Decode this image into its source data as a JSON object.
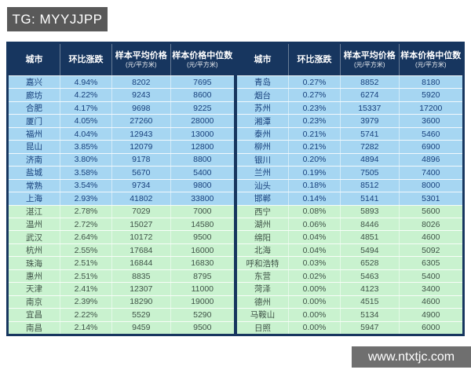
{
  "badge": {
    "label": "TG: MYYJJPP"
  },
  "watermark": {
    "label": "www.ntxtjc.com"
  },
  "colors": {
    "header_bg": "#17365f",
    "border": "#17365f",
    "blue_row_bg": "#a6d6f2",
    "green_row_bg": "#c9f2cf",
    "blue_row_text": "#17407c",
    "green_row_text": "#3f5347",
    "badge_bg": "#595959",
    "watermark_bg": "#6f6f6f"
  },
  "chart_data": {
    "type": "table",
    "headers": {
      "city": "城市",
      "mom_change": "环比涨跌",
      "avg_price": "样本平均价格",
      "median_price": "样本价格中位数",
      "unit": "(元/平方米)"
    },
    "left_rows": [
      {
        "city": "嘉兴",
        "change": "4.94%",
        "avg": "8202",
        "median": "7695",
        "group": "blue"
      },
      {
        "city": "廊坊",
        "change": "4.22%",
        "avg": "9243",
        "median": "8600",
        "group": "blue"
      },
      {
        "city": "合肥",
        "change": "4.17%",
        "avg": "9698",
        "median": "9225",
        "group": "blue"
      },
      {
        "city": "厦门",
        "change": "4.05%",
        "avg": "27260",
        "median": "28000",
        "group": "blue"
      },
      {
        "city": "福州",
        "change": "4.04%",
        "avg": "12943",
        "median": "13000",
        "group": "blue"
      },
      {
        "city": "昆山",
        "change": "3.85%",
        "avg": "12079",
        "median": "12800",
        "group": "blue"
      },
      {
        "city": "济南",
        "change": "3.80%",
        "avg": "9178",
        "median": "8800",
        "group": "blue"
      },
      {
        "city": "盐城",
        "change": "3.58%",
        "avg": "5670",
        "median": "5400",
        "group": "blue"
      },
      {
        "city": "常熟",
        "change": "3.54%",
        "avg": "9734",
        "median": "9800",
        "group": "blue"
      },
      {
        "city": "上海",
        "change": "2.93%",
        "avg": "41802",
        "median": "33800",
        "group": "blue"
      },
      {
        "city": "湛江",
        "change": "2.78%",
        "avg": "7029",
        "median": "7000",
        "group": "green"
      },
      {
        "city": "温州",
        "change": "2.72%",
        "avg": "15027",
        "median": "14580",
        "group": "green"
      },
      {
        "city": "武汉",
        "change": "2.64%",
        "avg": "10172",
        "median": "9500",
        "group": "green"
      },
      {
        "city": "杭州",
        "change": "2.55%",
        "avg": "17684",
        "median": "16000",
        "group": "green"
      },
      {
        "city": "珠海",
        "change": "2.51%",
        "avg": "16844",
        "median": "16830",
        "group": "green"
      },
      {
        "city": "惠州",
        "change": "2.51%",
        "avg": "8835",
        "median": "8795",
        "group": "green"
      },
      {
        "city": "天津",
        "change": "2.41%",
        "avg": "12307",
        "median": "11000",
        "group": "green"
      },
      {
        "city": "南京",
        "change": "2.39%",
        "avg": "18290",
        "median": "19000",
        "group": "green"
      },
      {
        "city": "宜昌",
        "change": "2.22%",
        "avg": "5529",
        "median": "5290",
        "group": "green"
      },
      {
        "city": "南昌",
        "change": "2.14%",
        "avg": "9459",
        "median": "9500",
        "group": "green"
      }
    ],
    "right_rows": [
      {
        "city": "青岛",
        "change": "0.27%",
        "avg": "8852",
        "median": "8180",
        "group": "blue"
      },
      {
        "city": "烟台",
        "change": "0.27%",
        "avg": "6274",
        "median": "5920",
        "group": "blue"
      },
      {
        "city": "苏州",
        "change": "0.23%",
        "avg": "15337",
        "median": "17200",
        "group": "blue"
      },
      {
        "city": "湘潭",
        "change": "0.23%",
        "avg": "3979",
        "median": "3600",
        "group": "blue"
      },
      {
        "city": "泰州",
        "change": "0.21%",
        "avg": "5741",
        "median": "5460",
        "group": "blue"
      },
      {
        "city": "柳州",
        "change": "0.21%",
        "avg": "7282",
        "median": "6900",
        "group": "blue"
      },
      {
        "city": "银川",
        "change": "0.20%",
        "avg": "4894",
        "median": "4896",
        "group": "blue"
      },
      {
        "city": "兰州",
        "change": "0.19%",
        "avg": "7505",
        "median": "7400",
        "group": "blue"
      },
      {
        "city": "汕头",
        "change": "0.18%",
        "avg": "8512",
        "median": "8000",
        "group": "blue"
      },
      {
        "city": "邯郸",
        "change": "0.14%",
        "avg": "5141",
        "median": "5301",
        "group": "blue"
      },
      {
        "city": "西宁",
        "change": "0.08%",
        "avg": "5893",
        "median": "5600",
        "group": "green"
      },
      {
        "city": "湖州",
        "change": "0.06%",
        "avg": "8446",
        "median": "8026",
        "group": "green"
      },
      {
        "city": "绵阳",
        "change": "0.04%",
        "avg": "4851",
        "median": "4600",
        "group": "green"
      },
      {
        "city": "北海",
        "change": "0.04%",
        "avg": "5494",
        "median": "5092",
        "group": "green"
      },
      {
        "city": "呼和浩特",
        "change": "0.03%",
        "avg": "6528",
        "median": "6305",
        "group": "green"
      },
      {
        "city": "东营",
        "change": "0.02%",
        "avg": "5463",
        "median": "5400",
        "group": "green"
      },
      {
        "city": "菏泽",
        "change": "0.00%",
        "avg": "4123",
        "median": "3400",
        "group": "green"
      },
      {
        "city": "德州",
        "change": "0.00%",
        "avg": "4515",
        "median": "4600",
        "group": "green"
      },
      {
        "city": "马鞍山",
        "change": "0.00%",
        "avg": "5134",
        "median": "4900",
        "group": "green"
      },
      {
        "city": "日照",
        "change": "0.00%",
        "avg": "5947",
        "median": "6000",
        "group": "green"
      }
    ]
  }
}
